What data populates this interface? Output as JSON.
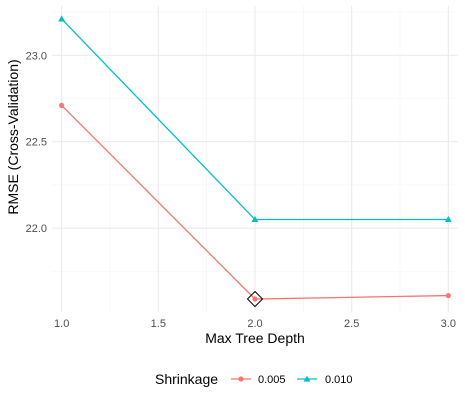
{
  "chart_data": {
    "type": "line",
    "xlabel": "Max Tree Depth",
    "ylabel": "RMSE (Cross-Validation)",
    "x_ticks": [
      1.0,
      1.5,
      2.0,
      2.5,
      3.0
    ],
    "x_tick_labels": [
      "1.0",
      "1.5",
      "2.0",
      "2.5",
      "3.0"
    ],
    "y_ticks": [
      22.0,
      22.5,
      23.0
    ],
    "y_tick_labels": [
      "22.0",
      "22.5",
      "23.0"
    ],
    "xlim": [
      0.95,
      3.05
    ],
    "ylim": [
      21.515,
      23.285
    ],
    "grid": true,
    "legend": {
      "title": "Shrinkage",
      "position": "bottom"
    },
    "series": [
      {
        "name": "0.005",
        "color": "#F8766D",
        "marker": "circle",
        "x": [
          1,
          2,
          3
        ],
        "y": [
          22.71,
          21.59,
          21.61
        ]
      },
      {
        "name": "0.010",
        "color": "#00BFC4",
        "marker": "triangle",
        "x": [
          1,
          2,
          3
        ],
        "y": [
          23.21,
          22.05,
          22.05
        ]
      }
    ],
    "highlight": {
      "marker": "diamond",
      "x": 2,
      "y": 21.59,
      "series": "0.005"
    }
  }
}
